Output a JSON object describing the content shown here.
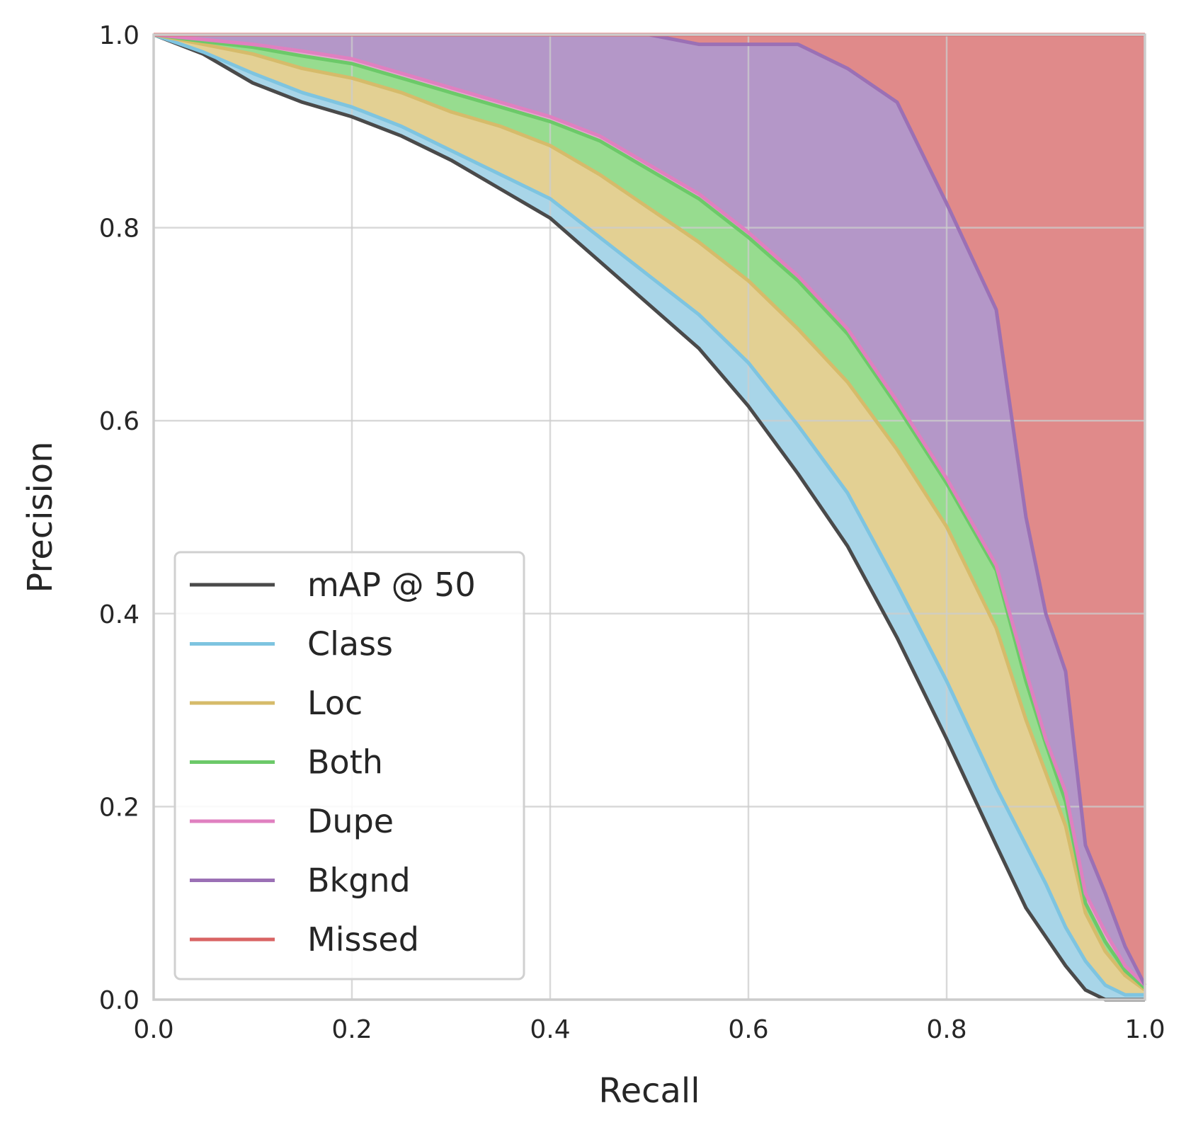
{
  "chart_data": {
    "type": "area",
    "xlabel": "Recall",
    "ylabel": "Precision",
    "xlim": [
      0.0,
      1.0
    ],
    "ylim": [
      0.0,
      1.0
    ],
    "grid": true,
    "legend_position": "lower-left",
    "xtick_labels": [
      "0.0",
      "0.2",
      "0.4",
      "0.6",
      "0.8",
      "1.0"
    ],
    "ytick_labels": [
      "0.0",
      "0.2",
      "0.4",
      "0.6",
      "0.8",
      "1.0"
    ],
    "x": [
      0.0,
      0.05,
      0.1,
      0.15,
      0.2,
      0.25,
      0.3,
      0.35,
      0.4,
      0.45,
      0.5,
      0.55,
      0.6,
      0.65,
      0.7,
      0.75,
      0.8,
      0.85,
      0.88,
      0.9,
      0.92,
      0.94,
      0.96,
      0.98,
      1.0
    ],
    "series": [
      {
        "name": "mAP @ 50",
        "color": "#4a4a4a",
        "fill": null,
        "values": [
          1.0,
          0.98,
          0.95,
          0.93,
          0.915,
          0.895,
          0.87,
          0.84,
          0.81,
          0.765,
          0.72,
          0.675,
          0.615,
          0.545,
          0.47,
          0.375,
          0.27,
          0.16,
          0.095,
          0.065,
          0.035,
          0.01,
          0.0,
          0.0,
          0.0
        ]
      },
      {
        "name": "Class",
        "color": "#7ec4e0",
        "fill": "#a8d5e8",
        "values": [
          1.0,
          0.982,
          0.96,
          0.94,
          0.925,
          0.905,
          0.88,
          0.855,
          0.83,
          0.79,
          0.75,
          0.71,
          0.66,
          0.595,
          0.525,
          0.43,
          0.33,
          0.22,
          0.16,
          0.12,
          0.075,
          0.04,
          0.015,
          0.005,
          0.005
        ]
      },
      {
        "name": "Loc",
        "color": "#d6bb6a",
        "fill": "#e3d093",
        "values": [
          1.0,
          0.99,
          0.98,
          0.965,
          0.955,
          0.94,
          0.92,
          0.905,
          0.885,
          0.855,
          0.82,
          0.785,
          0.745,
          0.695,
          0.64,
          0.57,
          0.49,
          0.385,
          0.29,
          0.235,
          0.18,
          0.09,
          0.05,
          0.025,
          0.01
        ]
      },
      {
        "name": "Both",
        "color": "#6cc969",
        "fill": "#97dc8f",
        "values": [
          1.0,
          0.993,
          0.987,
          0.978,
          0.97,
          0.955,
          0.94,
          0.925,
          0.91,
          0.89,
          0.86,
          0.83,
          0.79,
          0.745,
          0.69,
          0.615,
          0.535,
          0.445,
          0.33,
          0.265,
          0.205,
          0.1,
          0.06,
          0.03,
          0.012
        ]
      },
      {
        "name": "Dupe",
        "color": "#e080c0",
        "fill": "#e8a8d0",
        "values": [
          1.0,
          0.995,
          0.99,
          0.983,
          0.975,
          0.96,
          0.945,
          0.93,
          0.915,
          0.895,
          0.865,
          0.835,
          0.795,
          0.75,
          0.695,
          0.62,
          0.54,
          0.45,
          0.34,
          0.27,
          0.215,
          0.11,
          0.07,
          0.035,
          0.015
        ]
      },
      {
        "name": "Bkgnd",
        "color": "#9b70b5",
        "fill": "#b497c8",
        "values": [
          1.0,
          1.0,
          1.0,
          1.0,
          1.0,
          1.0,
          1.0,
          1.0,
          1.0,
          1.0,
          1.0,
          0.99,
          0.99,
          0.99,
          0.965,
          0.93,
          0.825,
          0.715,
          0.5,
          0.4,
          0.34,
          0.16,
          0.11,
          0.055,
          0.015
        ]
      },
      {
        "name": "Missed",
        "color": "#d96464",
        "fill": "#e08a8a",
        "values": [
          1.0,
          1.0,
          1.0,
          1.0,
          1.0,
          1.0,
          1.0,
          1.0,
          1.0,
          1.0,
          1.0,
          1.0,
          1.0,
          1.0,
          1.0,
          1.0,
          1.0,
          1.0,
          1.0,
          1.0,
          1.0,
          1.0,
          1.0,
          1.0,
          1.0
        ]
      }
    ]
  }
}
